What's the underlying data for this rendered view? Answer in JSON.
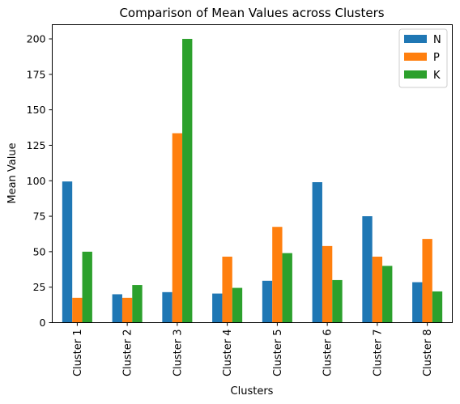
{
  "chart_data": {
    "type": "bar",
    "title": "Comparison of Mean Values across Clusters",
    "xlabel": "Clusters",
    "ylabel": "Mean Value",
    "categories": [
      "Cluster 1",
      "Cluster 2",
      "Cluster 3",
      "Cluster 4",
      "Cluster 5",
      "Cluster 6",
      "Cluster 7",
      "Cluster 8"
    ],
    "series": [
      {
        "name": "N",
        "color": "#1f77b4",
        "values": [
          99.5,
          20.0,
          21.5,
          20.5,
          29.5,
          99.0,
          75.0,
          28.5
        ]
      },
      {
        "name": "P",
        "color": "#ff7f0e",
        "values": [
          17.5,
          17.5,
          133.5,
          46.5,
          67.5,
          54.0,
          46.5,
          59.0
        ]
      },
      {
        "name": "K",
        "color": "#2ca02c",
        "values": [
          50.0,
          26.5,
          200.0,
          24.5,
          49.0,
          30.0,
          40.0,
          22.0
        ]
      }
    ],
    "yticks": [
      0,
      25,
      50,
      75,
      100,
      125,
      150,
      175,
      200
    ],
    "ylim": [
      0,
      210
    ],
    "grid": false,
    "legend_position": "top-right"
  }
}
